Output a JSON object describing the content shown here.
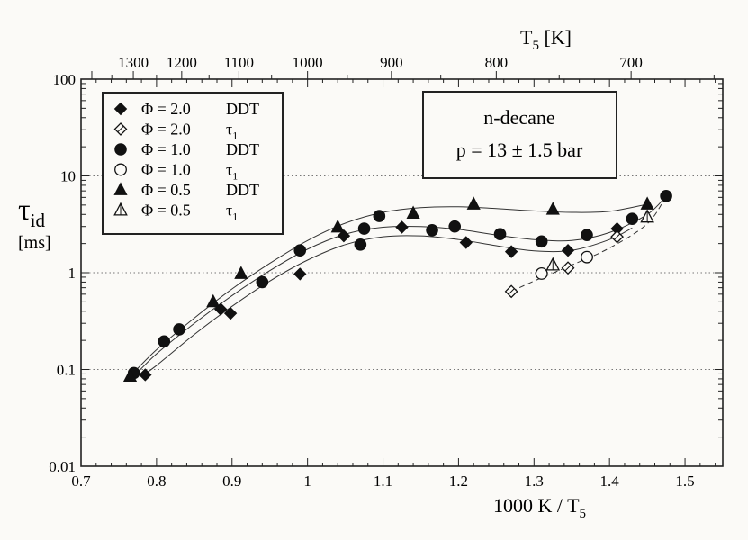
{
  "chart_data": {
    "type": "scatter",
    "xlabel_main": "1000 K / T",
    "xlabel_sub": "5",
    "top_xlabel_main": "T",
    "top_xlabel_sub": "5",
    "top_xlabel_unit": " [K]",
    "ylabel_main": "τ",
    "ylabel_sub": "id",
    "ylabel_unit": "[ms]",
    "xlim": [
      0.7,
      1.55
    ],
    "ylim": [
      0.01,
      100
    ],
    "yscale": "log",
    "grid": "horizontal dotted",
    "x_ticks": [
      0.7,
      0.8,
      0.9,
      1,
      1.1,
      1.2,
      1.3,
      1.4,
      1.5
    ],
    "x_tick_labels": [
      "0.7",
      "0.8",
      "0.9",
      "1",
      "1.1",
      "1.2",
      "1.3",
      "1.4",
      "1.5"
    ],
    "y_ticks": [
      0.01,
      0.1,
      1,
      10,
      100
    ],
    "y_tick_labels": [
      "0.01",
      "0.1",
      "1",
      "10",
      "100"
    ],
    "top_ticks_K": [
      1300,
      1200,
      1100,
      1000,
      900,
      800,
      700
    ],
    "top_tick_labels": [
      "1300",
      "1200",
      "1100",
      "1000",
      "900",
      "800",
      "700"
    ],
    "annotation_lines": [
      "n-decane",
      "p = 13 ± 1.5 bar"
    ],
    "legend_position": "top-left",
    "series": [
      {
        "name": "Φ = 2.0 DDT",
        "label_phi": "Φ = 2.0",
        "label_type": "DDT",
        "label_type_sub": "",
        "marker": "diamond-filled",
        "points": [
          [
            0.785,
            0.088
          ],
          [
            0.885,
            0.42
          ],
          [
            0.898,
            0.38
          ],
          [
            0.99,
            0.97
          ],
          [
            1.048,
            2.4
          ],
          [
            1.125,
            2.95
          ],
          [
            1.21,
            2.05
          ],
          [
            1.27,
            1.65
          ],
          [
            1.345,
            1.7
          ],
          [
            1.41,
            2.85
          ]
        ]
      },
      {
        "name": "Φ = 2.0 τ1",
        "label_phi": "Φ = 2.0",
        "label_type": "τ",
        "label_type_sub": "1",
        "marker": "diamond-open",
        "points": [
          [
            1.27,
            0.64
          ],
          [
            1.345,
            1.12
          ],
          [
            1.41,
            2.35
          ]
        ]
      },
      {
        "name": "Φ = 1.0 DDT",
        "label_phi": "Φ = 1.0",
        "label_type": "DDT",
        "label_type_sub": "",
        "marker": "circle-filled",
        "points": [
          [
            0.77,
            0.092
          ],
          [
            0.81,
            0.195
          ],
          [
            0.83,
            0.26
          ],
          [
            0.94,
            0.8
          ],
          [
            0.99,
            1.7
          ],
          [
            1.07,
            1.95
          ],
          [
            1.075,
            2.85
          ],
          [
            1.095,
            3.85
          ],
          [
            1.165,
            2.75
          ],
          [
            1.195,
            3.0
          ],
          [
            1.255,
            2.5
          ],
          [
            1.31,
            2.1
          ],
          [
            1.37,
            2.45
          ],
          [
            1.43,
            3.6
          ],
          [
            1.475,
            6.2
          ]
        ]
      },
      {
        "name": "Φ = 1.0 τ1",
        "label_phi": "Φ = 1.0",
        "label_type": "τ",
        "label_type_sub": "1",
        "marker": "circle-open",
        "points": [
          [
            1.31,
            0.98
          ],
          [
            1.37,
            1.45
          ]
        ]
      },
      {
        "name": "Φ = 0.5 DDT",
        "label_phi": "Φ = 0.5",
        "label_type": "DDT",
        "label_type_sub": "",
        "marker": "triangle-filled",
        "points": [
          [
            0.765,
            0.085
          ],
          [
            0.875,
            0.5
          ],
          [
            0.912,
            0.98
          ],
          [
            1.04,
            2.95
          ],
          [
            1.14,
            4.1
          ],
          [
            1.22,
            5.1
          ],
          [
            1.325,
            4.5
          ],
          [
            1.45,
            5.1
          ]
        ]
      },
      {
        "name": "Φ = 0.5 τ1",
        "label_phi": "Φ = 0.5",
        "label_type": "τ",
        "label_type_sub": "1",
        "marker": "triangle-open",
        "points": [
          [
            1.325,
            1.2
          ],
          [
            1.45,
            3.75
          ]
        ]
      }
    ],
    "fit_curves": [
      {
        "style": "solid",
        "points": [
          [
            0.765,
            0.085
          ],
          [
            0.8,
            0.16
          ],
          [
            0.85,
            0.34
          ],
          [
            0.9,
            0.68
          ],
          [
            0.95,
            1.25
          ],
          [
            1.0,
            2.15
          ],
          [
            1.05,
            3.25
          ],
          [
            1.1,
            4.2
          ],
          [
            1.15,
            4.7
          ],
          [
            1.2,
            4.8
          ],
          [
            1.25,
            4.6
          ],
          [
            1.3,
            4.35
          ],
          [
            1.35,
            4.2
          ],
          [
            1.4,
            4.3
          ],
          [
            1.45,
            5.1
          ]
        ]
      },
      {
        "style": "solid",
        "points": [
          [
            0.77,
            0.085
          ],
          [
            0.8,
            0.145
          ],
          [
            0.85,
            0.3
          ],
          [
            0.9,
            0.58
          ],
          [
            0.95,
            1.05
          ],
          [
            1.0,
            1.75
          ],
          [
            1.05,
            2.5
          ],
          [
            1.1,
            2.95
          ],
          [
            1.15,
            3.0
          ],
          [
            1.2,
            2.8
          ],
          [
            1.25,
            2.45
          ],
          [
            1.3,
            2.2
          ],
          [
            1.35,
            2.15
          ],
          [
            1.4,
            2.6
          ],
          [
            1.45,
            4.0
          ],
          [
            1.475,
            6.2
          ]
        ]
      },
      {
        "style": "solid",
        "points": [
          [
            0.78,
            0.085
          ],
          [
            0.8,
            0.11
          ],
          [
            0.85,
            0.23
          ],
          [
            0.9,
            0.45
          ],
          [
            0.95,
            0.82
          ],
          [
            1.0,
            1.35
          ],
          [
            1.05,
            1.95
          ],
          [
            1.1,
            2.35
          ],
          [
            1.15,
            2.4
          ],
          [
            1.2,
            2.2
          ],
          [
            1.25,
            1.9
          ],
          [
            1.3,
            1.68
          ],
          [
            1.35,
            1.7
          ],
          [
            1.4,
            2.2
          ],
          [
            1.43,
            2.9
          ]
        ]
      },
      {
        "style": "dashed",
        "points": [
          [
            1.27,
            0.64
          ],
          [
            1.3,
            0.82
          ],
          [
            1.35,
            1.2
          ],
          [
            1.4,
            1.8
          ],
          [
            1.45,
            3.2
          ],
          [
            1.475,
            6.2
          ]
        ]
      }
    ]
  }
}
